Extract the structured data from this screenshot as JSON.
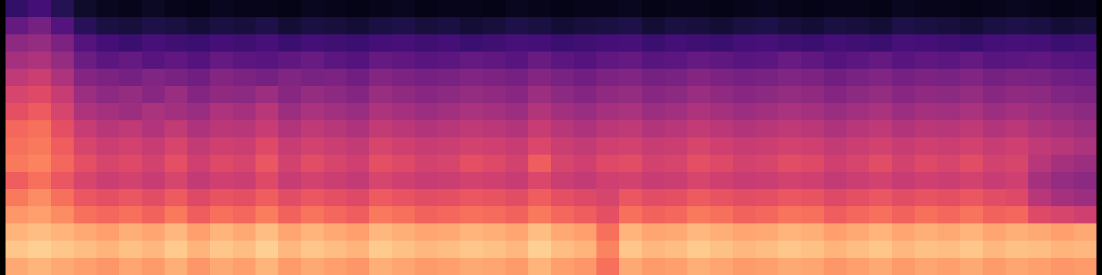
{
  "chart_data": {
    "type": "heatmap",
    "tick_labels": false,
    "color": "magma",
    "zlim": [
      0,
      100
    ],
    "cells": [
      [
        18,
        22,
        15,
        8,
        6,
        5,
        7,
        5,
        4,
        6,
        5,
        5,
        4,
        6,
        5,
        4,
        5,
        6,
        4,
        5,
        5,
        4,
        6,
        5,
        4,
        5,
        5,
        6,
        4,
        5,
        5,
        4,
        5,
        6,
        5,
        4,
        5,
        5,
        4,
        6,
        5,
        5,
        4,
        5,
        6,
        5,
        4,
        5
      ],
      [
        30,
        34,
        26,
        16,
        12,
        11,
        13,
        12,
        10,
        12,
        11,
        13,
        10,
        12,
        11,
        10,
        12,
        13,
        11,
        12,
        10,
        11,
        13,
        12,
        10,
        11,
        12,
        13,
        10,
        12,
        11,
        10,
        12,
        13,
        11,
        10,
        12,
        11,
        10,
        13,
        12,
        11,
        10,
        12,
        13,
        12,
        10,
        11
      ],
      [
        40,
        42,
        36,
        26,
        22,
        20,
        23,
        21,
        20,
        22,
        21,
        23,
        20,
        22,
        21,
        20,
        22,
        23,
        21,
        22,
        20,
        21,
        23,
        22,
        20,
        21,
        22,
        23,
        20,
        22,
        21,
        20,
        22,
        23,
        21,
        20,
        22,
        21,
        20,
        23,
        22,
        21,
        20,
        22,
        23,
        22,
        20,
        21
      ],
      [
        46,
        48,
        42,
        32,
        28,
        30,
        27,
        29,
        26,
        30,
        28,
        27,
        29,
        31,
        28,
        26,
        30,
        29,
        27,
        28,
        30,
        29,
        27,
        31,
        28,
        26,
        29,
        30,
        27,
        28,
        30,
        29,
        27,
        28,
        31,
        29,
        26,
        28,
        30,
        27,
        29,
        28,
        30,
        27,
        28,
        29,
        27,
        26
      ],
      [
        52,
        55,
        48,
        38,
        36,
        34,
        37,
        35,
        33,
        38,
        36,
        34,
        37,
        35,
        36,
        33,
        38,
        36,
        34,
        35,
        37,
        36,
        34,
        38,
        35,
        33,
        36,
        37,
        34,
        35,
        38,
        36,
        34,
        35,
        37,
        36,
        33,
        35,
        37,
        34,
        36,
        35,
        37,
        34,
        36,
        35,
        33,
        32
      ],
      [
        58,
        60,
        54,
        44,
        40,
        42,
        39,
        43,
        38,
        41,
        40,
        44,
        39,
        42,
        40,
        38,
        43,
        41,
        39,
        40,
        42,
        41,
        39,
        44,
        40,
        38,
        41,
        42,
        39,
        40,
        43,
        41,
        39,
        40,
        42,
        41,
        38,
        40,
        42,
        39,
        41,
        40,
        42,
        39,
        41,
        40,
        37,
        36
      ],
      [
        62,
        65,
        58,
        48,
        46,
        44,
        47,
        45,
        43,
        48,
        46,
        50,
        44,
        47,
        45,
        43,
        48,
        46,
        44,
        45,
        47,
        46,
        44,
        49,
        45,
        43,
        46,
        47,
        44,
        45,
        48,
        46,
        44,
        45,
        47,
        46,
        43,
        45,
        47,
        44,
        46,
        45,
        47,
        44,
        46,
        44,
        42,
        40
      ],
      [
        68,
        70,
        62,
        54,
        50,
        52,
        49,
        53,
        48,
        51,
        50,
        54,
        49,
        52,
        50,
        48,
        53,
        51,
        49,
        50,
        52,
        51,
        49,
        54,
        50,
        48,
        51,
        52,
        49,
        50,
        53,
        51,
        49,
        50,
        52,
        51,
        48,
        50,
        52,
        49,
        51,
        50,
        52,
        49,
        51,
        48,
        46,
        44
      ],
      [
        70,
        72,
        66,
        58,
        55,
        57,
        54,
        58,
        53,
        56,
        55,
        60,
        54,
        57,
        55,
        53,
        58,
        56,
        54,
        55,
        57,
        56,
        54,
        59,
        55,
        53,
        56,
        57,
        54,
        55,
        58,
        56,
        54,
        55,
        57,
        56,
        53,
        55,
        57,
        54,
        56,
        55,
        57,
        54,
        56,
        52,
        50,
        48
      ],
      [
        72,
        74,
        68,
        62,
        58,
        60,
        57,
        62,
        56,
        60,
        58,
        64,
        57,
        61,
        58,
        56,
        62,
        60,
        57,
        58,
        62,
        60,
        57,
        66,
        58,
        56,
        60,
        61,
        57,
        58,
        62,
        60,
        57,
        58,
        61,
        60,
        56,
        58,
        61,
        57,
        60,
        58,
        61,
        57,
        58,
        50,
        46,
        44
      ],
      [
        66,
        70,
        64,
        58,
        55,
        57,
        54,
        58,
        53,
        56,
        55,
        60,
        54,
        57,
        55,
        53,
        58,
        56,
        54,
        55,
        57,
        56,
        54,
        59,
        55,
        53,
        56,
        57,
        54,
        55,
        58,
        56,
        54,
        55,
        57,
        56,
        53,
        55,
        57,
        54,
        56,
        55,
        57,
        54,
        56,
        46,
        42,
        40
      ],
      [
        72,
        76,
        70,
        64,
        62,
        64,
        61,
        65,
        60,
        63,
        62,
        66,
        61,
        64,
        62,
        60,
        65,
        63,
        61,
        62,
        64,
        63,
        61,
        66,
        62,
        60,
        58,
        64,
        61,
        62,
        65,
        63,
        61,
        62,
        64,
        63,
        60,
        62,
        64,
        61,
        63,
        62,
        64,
        61,
        60,
        50,
        46,
        44
      ],
      [
        78,
        80,
        76,
        70,
        68,
        70,
        67,
        72,
        66,
        70,
        68,
        73,
        67,
        71,
        68,
        66,
        72,
        70,
        67,
        68,
        70,
        69,
        67,
        72,
        68,
        66,
        62,
        70,
        67,
        68,
        72,
        70,
        67,
        68,
        71,
        70,
        66,
        68,
        70,
        67,
        70,
        68,
        71,
        67,
        68,
        60,
        58,
        56
      ],
      [
        84,
        86,
        84,
        82,
        80,
        83,
        81,
        85,
        80,
        84,
        82,
        86,
        81,
        84,
        82,
        80,
        85,
        83,
        81,
        82,
        84,
        83,
        81,
        86,
        82,
        80,
        70,
        84,
        81,
        82,
        85,
        83,
        81,
        82,
        84,
        83,
        80,
        82,
        84,
        81,
        83,
        82,
        84,
        81,
        83,
        82,
        80,
        82
      ],
      [
        88,
        90,
        88,
        86,
        84,
        87,
        85,
        89,
        84,
        88,
        86,
        90,
        85,
        88,
        86,
        84,
        89,
        87,
        85,
        86,
        88,
        87,
        85,
        90,
        86,
        84,
        74,
        88,
        85,
        86,
        89,
        87,
        85,
        86,
        88,
        87,
        84,
        86,
        88,
        85,
        87,
        86,
        88,
        85,
        87,
        86,
        84,
        85
      ],
      [
        82,
        84,
        82,
        80,
        78,
        81,
        79,
        83,
        78,
        82,
        80,
        84,
        79,
        82,
        80,
        78,
        83,
        81,
        79,
        80,
        82,
        81,
        79,
        84,
        80,
        78,
        70,
        82,
        79,
        80,
        83,
        81,
        79,
        80,
        82,
        81,
        78,
        80,
        82,
        79,
        81,
        80,
        82,
        79,
        81,
        80,
        78,
        79
      ]
    ]
  }
}
